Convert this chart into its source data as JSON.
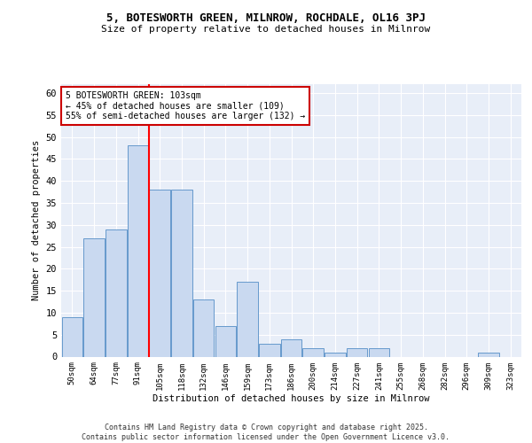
{
  "title1": "5, BOTESWORTH GREEN, MILNROW, ROCHDALE, OL16 3PJ",
  "title2": "Size of property relative to detached houses in Milnrow",
  "xlabel": "Distribution of detached houses by size in Milnrow",
  "ylabel": "Number of detached properties",
  "categories": [
    "50sqm",
    "64sqm",
    "77sqm",
    "91sqm",
    "105sqm",
    "118sqm",
    "132sqm",
    "146sqm",
    "159sqm",
    "173sqm",
    "186sqm",
    "200sqm",
    "214sqm",
    "227sqm",
    "241sqm",
    "255sqm",
    "268sqm",
    "282sqm",
    "296sqm",
    "309sqm",
    "323sqm"
  ],
  "values": [
    9,
    27,
    29,
    48,
    38,
    38,
    13,
    7,
    17,
    3,
    4,
    2,
    1,
    2,
    2,
    0,
    0,
    0,
    0,
    1,
    0
  ],
  "bar_color": "#c9d9f0",
  "bar_edge_color": "#6699cc",
  "red_line_index": 4,
  "annotation_text": "5 BOTESWORTH GREEN: 103sqm\n← 45% of detached houses are smaller (109)\n55% of semi-detached houses are larger (132) →",
  "footer": "Contains HM Land Registry data © Crown copyright and database right 2025.\nContains public sector information licensed under the Open Government Licence v3.0.",
  "ylim": [
    0,
    62
  ],
  "yticks": [
    0,
    5,
    10,
    15,
    20,
    25,
    30,
    35,
    40,
    45,
    50,
    55,
    60
  ],
  "bg_color": "#e8eef8",
  "grid_color": "#ffffff",
  "annotation_box_color": "#ffffff",
  "annotation_border_color": "#cc0000",
  "fig_width": 6.0,
  "fig_height": 5.0,
  "dpi": 100
}
